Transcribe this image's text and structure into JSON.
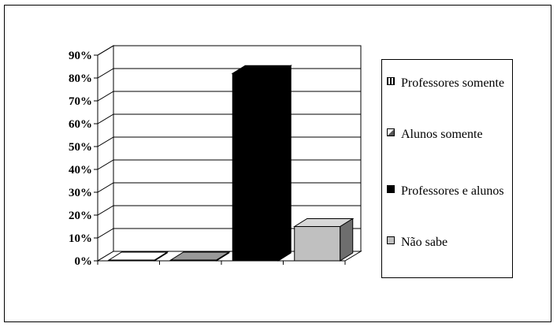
{
  "chart_data": {
    "type": "bar",
    "style": "3d",
    "categories": [
      "Professores somente",
      "Alunos somente",
      "Professores e alunos",
      "Não sabe"
    ],
    "values": [
      0,
      0,
      82,
      15
    ],
    "ylim": [
      0,
      90
    ],
    "y_ticks": [
      "0%",
      "10%",
      "20%",
      "30%",
      "40%",
      "50%",
      "60%",
      "70%",
      "80%",
      "90%"
    ],
    "grid": true,
    "legend_position": "right",
    "series_colors": [
      "#ffffff",
      "#888888",
      "#000000",
      "#c0c0c0"
    ]
  },
  "legend": {
    "items": [
      {
        "label": "Professores somente"
      },
      {
        "label": "Alunos somente"
      },
      {
        "label": "Professores e alunos"
      },
      {
        "label": "Não sabe"
      }
    ]
  }
}
